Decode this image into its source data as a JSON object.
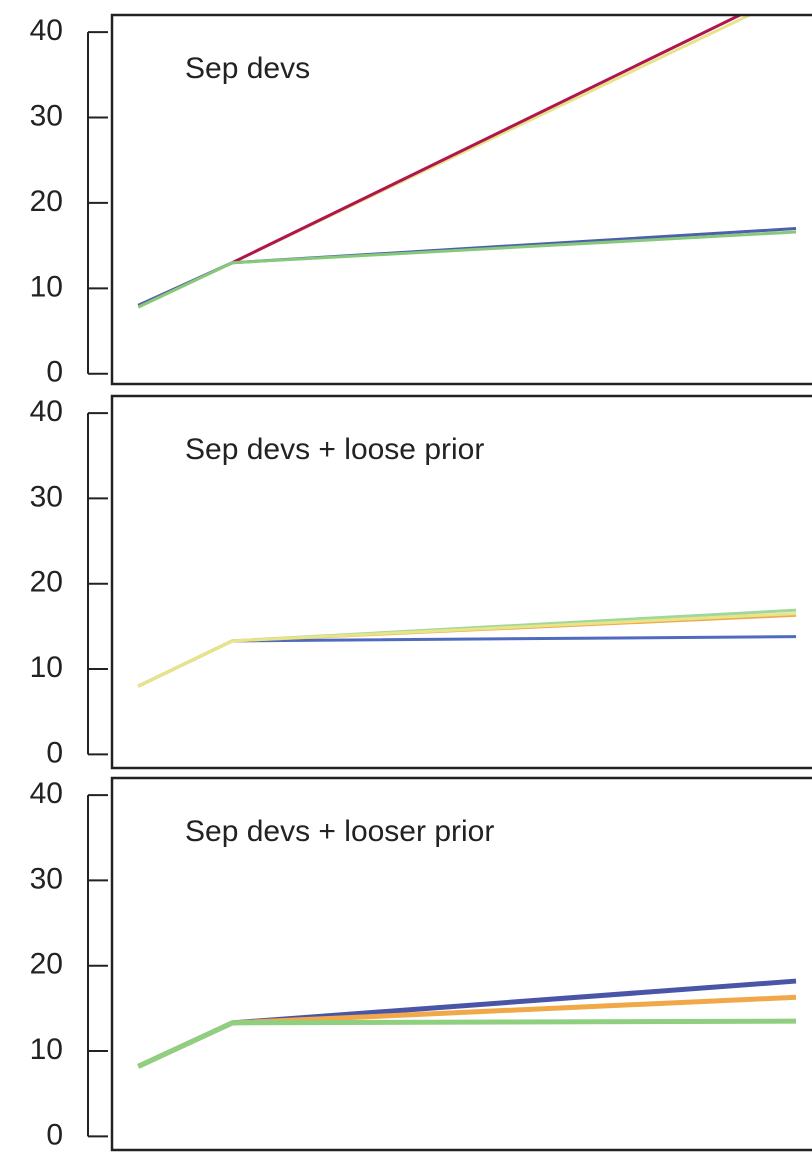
{
  "chart_data": [
    {
      "type": "line",
      "title": "Sep devs",
      "x": [
        1,
        2,
        8
      ],
      "xlim": [
        0.72,
        8.17
      ],
      "ylim": [
        -1.2,
        42
      ],
      "yticks": [
        0,
        10,
        20,
        30,
        40
      ],
      "series": [
        {
          "color": "#e6e38a",
          "values": [
            7.8,
            13,
            44.6
          ]
        },
        {
          "color": "#b0154c",
          "values": [
            8,
            13,
            45.2
          ]
        },
        {
          "color": "#4f5fae",
          "values": [
            8,
            13,
            17
          ]
        },
        {
          "color": "#86c97a",
          "values": [
            7.8,
            13,
            16.6
          ]
        }
      ]
    },
    {
      "type": "line",
      "title": "Sep devs + loose prior",
      "x": [
        1,
        2,
        8
      ],
      "xlim": [
        0.72,
        8.17
      ],
      "ylim": [
        -1.6,
        42
      ],
      "yticks": [
        0,
        10,
        20,
        30,
        40
      ],
      "series": [
        {
          "color": "#4f6bc0",
          "values": [
            8,
            13.3,
            13.8
          ]
        },
        {
          "color": "#9fd89a",
          "values": [
            8,
            13.3,
            16.9
          ]
        },
        {
          "color": "#f0a850",
          "values": [
            8,
            13.3,
            16.3
          ]
        },
        {
          "color": "#e8e488",
          "values": [
            8,
            13.3,
            16.5
          ]
        }
      ]
    },
    {
      "type": "line",
      "title": "Sep devs + looser prior",
      "x": [
        1,
        2,
        8
      ],
      "xlim": [
        0.72,
        8.17
      ],
      "ylim": [
        -1.6,
        42
      ],
      "yticks": [
        0,
        10,
        20,
        30,
        40
      ],
      "series": [
        {
          "color": "#4a55a8",
          "values": [
            8.2,
            13.3,
            18.2
          ]
        },
        {
          "color": "#f0a848",
          "values": [
            8.2,
            13.3,
            16.3
          ]
        },
        {
          "color": "#8fcf80",
          "values": [
            8.2,
            13.3,
            13.5
          ]
        }
      ]
    }
  ]
}
